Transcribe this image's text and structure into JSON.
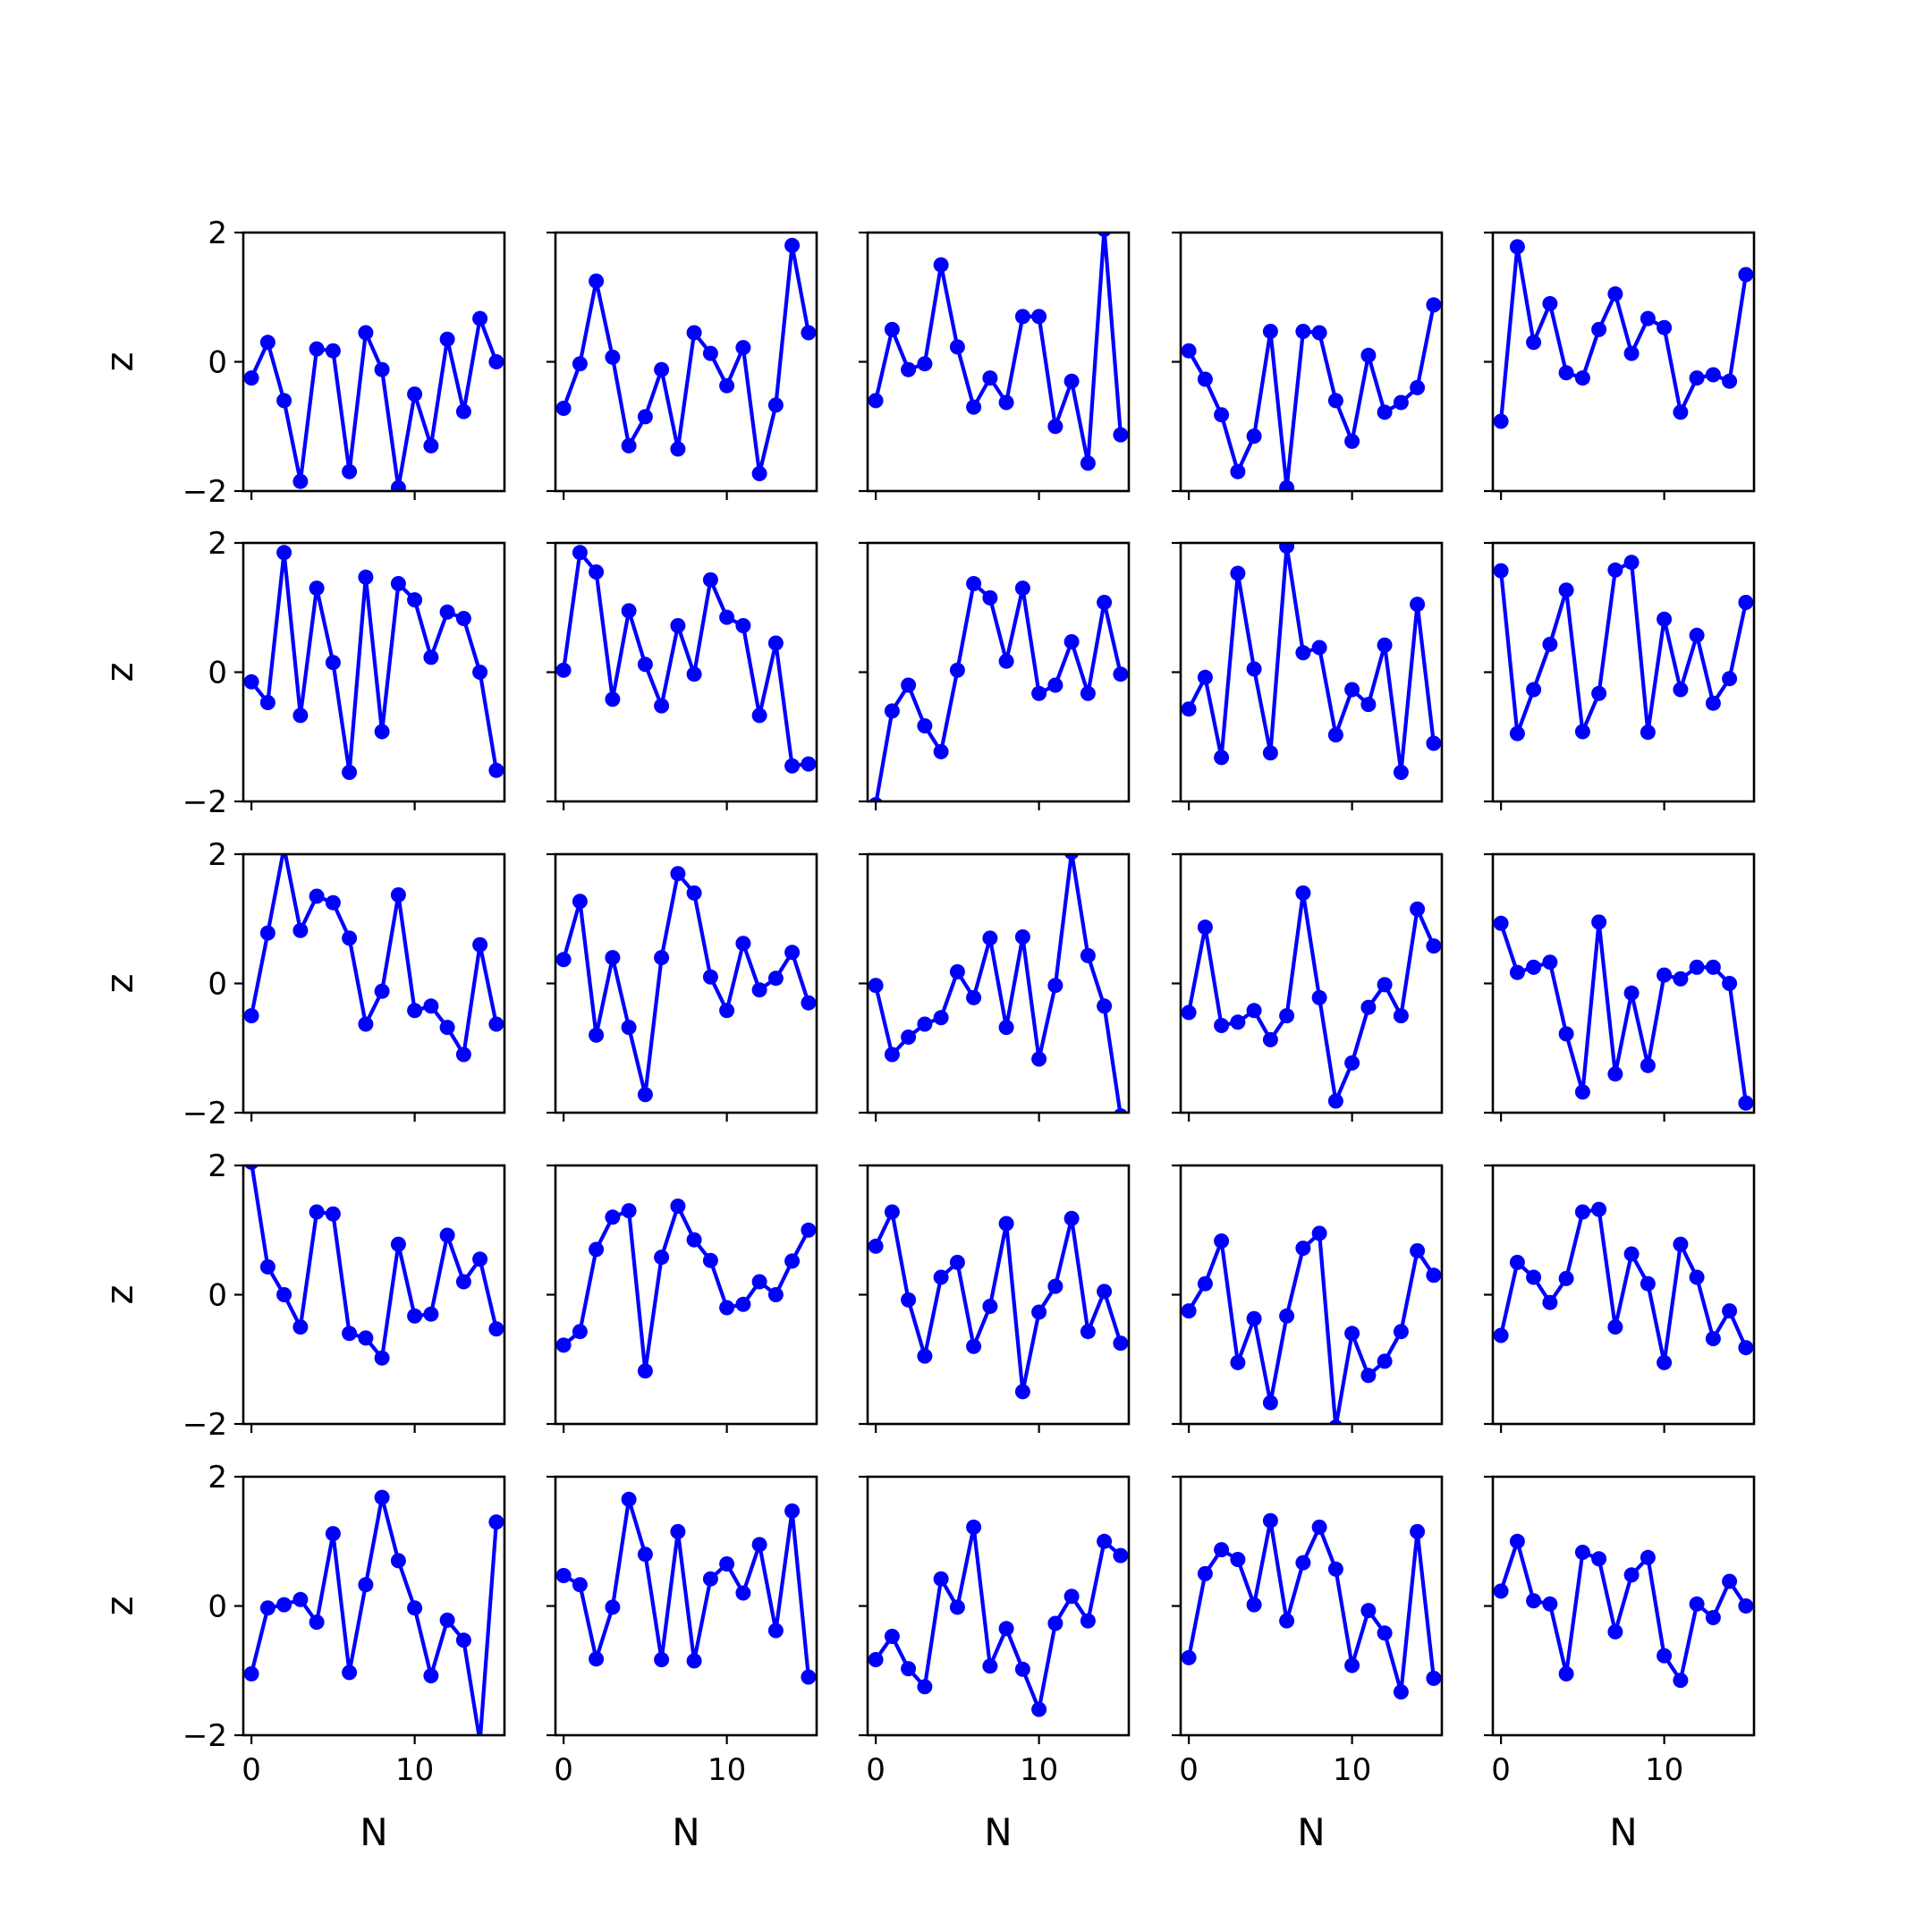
{
  "chart_data": {
    "type": "line",
    "layout": "grid",
    "rows": 5,
    "cols": 5,
    "xlabel": "N",
    "ylabel": "z",
    "ylim": [
      -2,
      2
    ],
    "xlim": [
      -0.5,
      15.5
    ],
    "xticks": [
      0,
      10
    ],
    "yticks": [
      -2,
      0,
      2
    ],
    "line_color": "#0000ff",
    "marker": "circle",
    "x": [
      0,
      1,
      2,
      3,
      4,
      5,
      6,
      7,
      8,
      9,
      10,
      11,
      12,
      13,
      14,
      15
    ],
    "panels": [
      {
        "values": [
          -0.25,
          0.3,
          -0.6,
          -1.85,
          0.2,
          0.17,
          -1.7,
          0.45,
          -0.12,
          -1.95,
          -0.5,
          -1.3,
          0.35,
          -0.77,
          0.67,
          0.0
        ]
      },
      {
        "values": [
          -0.72,
          -0.03,
          1.25,
          0.07,
          -1.3,
          -0.85,
          -0.12,
          -1.35,
          0.45,
          0.13,
          -0.37,
          0.22,
          -1.73,
          -0.67,
          1.8,
          0.45
        ]
      },
      {
        "values": [
          -0.6,
          0.5,
          -0.12,
          -0.03,
          1.5,
          0.23,
          -0.7,
          -0.25,
          -0.63,
          0.7,
          0.7,
          -1.0,
          -0.3,
          -1.57,
          2.05,
          -1.13
        ]
      },
      {
        "values": [
          0.17,
          -0.27,
          -0.82,
          -1.7,
          -1.15,
          0.47,
          -1.95,
          0.47,
          0.45,
          -0.6,
          -1.23,
          0.1,
          -0.78,
          -0.63,
          -0.4,
          0.88
        ]
      },
      {
        "values": [
          -0.92,
          1.78,
          0.3,
          0.9,
          -0.17,
          -0.25,
          0.5,
          1.05,
          0.13,
          0.67,
          0.53,
          -0.78,
          -0.25,
          -0.2,
          -0.3,
          1.35
        ]
      },
      {
        "values": [
          -0.15,
          -0.47,
          1.85,
          -0.67,
          1.3,
          0.15,
          -1.55,
          1.47,
          -0.92,
          1.37,
          1.12,
          0.23,
          0.93,
          0.83,
          0.0,
          -1.52
        ]
      },
      {
        "values": [
          0.03,
          1.85,
          1.55,
          -0.42,
          0.95,
          0.12,
          -0.52,
          0.72,
          -0.03,
          1.43,
          0.85,
          0.72,
          -0.67,
          0.45,
          -1.45,
          -1.42
        ]
      },
      {
        "values": [
          -2.05,
          -0.6,
          -0.2,
          -0.83,
          -1.23,
          0.03,
          1.37,
          1.15,
          0.17,
          1.3,
          -0.33,
          -0.2,
          0.47,
          -0.33,
          1.08,
          -0.03
        ]
      },
      {
        "values": [
          -0.57,
          -0.08,
          -1.32,
          1.53,
          0.05,
          -1.25,
          1.95,
          0.3,
          0.38,
          -0.97,
          -0.27,
          -0.5,
          0.42,
          -1.55,
          1.05,
          -1.1
        ]
      },
      {
        "values": [
          1.57,
          -0.95,
          -0.27,
          0.43,
          1.27,
          -0.92,
          -0.33,
          1.58,
          1.7,
          -0.93,
          0.82,
          -0.27,
          0.57,
          -0.48,
          -0.1,
          1.08
        ]
      },
      {
        "values": [
          -0.5,
          0.78,
          2.1,
          0.82,
          1.35,
          1.25,
          0.7,
          -0.63,
          -0.12,
          1.37,
          -0.42,
          -0.35,
          -0.68,
          -1.1,
          0.6,
          -0.63
        ]
      },
      {
        "values": [
          0.37,
          1.27,
          -0.8,
          0.4,
          -0.68,
          -1.72,
          0.4,
          1.7,
          1.4,
          0.1,
          -0.42,
          0.62,
          -0.1,
          0.08,
          0.48,
          -0.3
        ]
      },
      {
        "values": [
          -0.03,
          -1.1,
          -0.83,
          -0.63,
          -0.53,
          0.18,
          -0.22,
          0.7,
          -0.68,
          0.72,
          -1.17,
          -0.03,
          2.03,
          0.43,
          -0.35,
          -2.05
        ]
      },
      {
        "values": [
          -0.45,
          0.87,
          -0.65,
          -0.6,
          -0.42,
          -0.87,
          -0.5,
          1.4,
          -0.22,
          -1.82,
          -1.23,
          -0.37,
          -0.02,
          -0.5,
          1.15,
          0.58
        ]
      },
      {
        "values": [
          0.93,
          0.17,
          0.25,
          0.33,
          -0.78,
          -1.68,
          0.95,
          -1.4,
          -0.15,
          -1.27,
          0.13,
          0.07,
          0.25,
          0.25,
          0.0,
          -1.85
        ]
      },
      {
        "values": [
          2.05,
          0.43,
          0.0,
          -0.5,
          1.28,
          1.25,
          -0.6,
          -0.67,
          -0.98,
          0.78,
          -0.33,
          -0.3,
          0.92,
          0.2,
          0.55,
          -0.53
        ]
      },
      {
        "values": [
          -0.78,
          -0.57,
          0.7,
          1.2,
          1.3,
          -1.18,
          0.58,
          1.37,
          0.85,
          0.53,
          -0.2,
          -0.15,
          0.2,
          0.0,
          0.52,
          1.0
        ]
      },
      {
        "values": [
          0.75,
          1.28,
          -0.08,
          -0.95,
          0.27,
          0.5,
          -0.8,
          -0.18,
          1.1,
          -1.5,
          -0.27,
          0.13,
          1.18,
          -0.57,
          0.05,
          -0.75
        ]
      },
      {
        "values": [
          -0.25,
          0.17,
          0.83,
          -1.05,
          -0.37,
          -1.67,
          -0.33,
          0.72,
          0.95,
          -2.05,
          -0.6,
          -1.25,
          -1.03,
          -0.57,
          0.68,
          0.3
        ]
      },
      {
        "values": [
          -0.63,
          0.5,
          0.27,
          -0.12,
          0.25,
          1.28,
          1.32,
          -0.5,
          0.63,
          0.17,
          -1.05,
          0.78,
          0.27,
          -0.68,
          -0.25,
          -0.82
        ]
      },
      {
        "values": [
          -1.05,
          -0.03,
          0.02,
          0.1,
          -0.25,
          1.12,
          -1.03,
          0.33,
          1.68,
          0.7,
          -0.03,
          -1.08,
          -0.22,
          -0.53,
          -2.1,
          1.3
        ]
      },
      {
        "values": [
          0.47,
          0.33,
          -0.82,
          -0.02,
          1.65,
          0.8,
          -0.83,
          1.15,
          -0.85,
          0.42,
          0.65,
          0.2,
          0.95,
          -0.38,
          1.47,
          -1.1
        ]
      },
      {
        "values": [
          -0.83,
          -0.47,
          -0.97,
          -1.25,
          0.42,
          -0.02,
          1.22,
          -0.93,
          -0.35,
          -0.98,
          -1.6,
          -0.27,
          0.15,
          -0.23,
          1.0,
          0.78
        ]
      },
      {
        "values": [
          -0.8,
          0.5,
          0.87,
          0.72,
          0.02,
          1.32,
          -0.23,
          0.67,
          1.22,
          0.57,
          -0.92,
          -0.07,
          -0.42,
          -1.33,
          1.15,
          -1.12
        ]
      },
      {
        "values": [
          0.23,
          1.0,
          0.08,
          0.03,
          -1.05,
          0.83,
          0.73,
          -0.4,
          0.48,
          0.75,
          -0.77,
          -1.15,
          0.03,
          -0.18,
          0.38,
          0.0
        ]
      }
    ]
  }
}
